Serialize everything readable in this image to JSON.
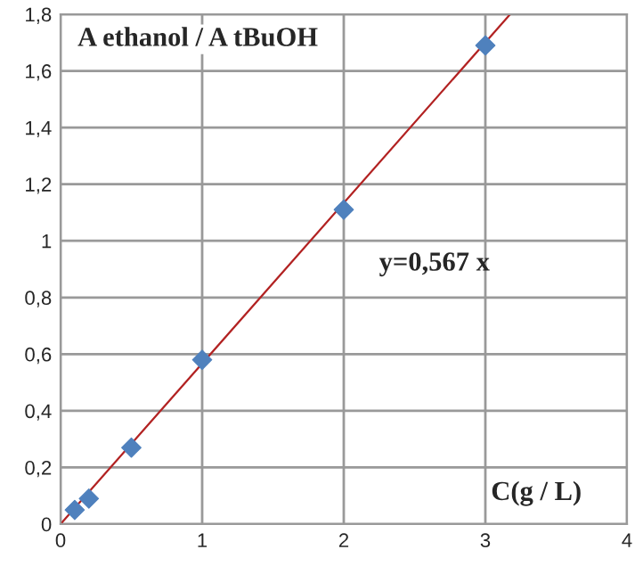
{
  "chart_data": {
    "type": "scatter",
    "xlabel": "C(g / L)",
    "ylabel": "A ethanol / A tBuOH",
    "annotations": [
      "y=0,567 x"
    ],
    "series": [
      {
        "color": "#4f81bd",
        "x": [
          0.1,
          0.2,
          0.5,
          1,
          2,
          3
        ],
        "values": [
          0.05,
          0.09,
          0.27,
          0.58,
          1.11,
          1.69
        ],
        "marker": "diamond"
      },
      {
        "type": "line",
        "color": "#b22222",
        "x": [
          0,
          3.175
        ],
        "values": [
          0,
          1.8
        ],
        "marker": "none"
      }
    ],
    "xlim": [
      0,
      4
    ],
    "ylim": [
      0,
      1.8
    ],
    "xticks": [
      0,
      1,
      2,
      3,
      4
    ],
    "yticks": [
      0,
      {
        "value": 0.2,
        "label": "0,2"
      },
      {
        "value": 0.4,
        "label": "0,4"
      },
      {
        "value": 0.6,
        "label": "0,6"
      },
      {
        "value": 0.8,
        "label": "0,8"
      },
      1,
      {
        "value": 1.2,
        "label": "1,2"
      },
      {
        "value": 1.4,
        "label": "1,4"
      },
      {
        "value": 1.6,
        "label": "1,6"
      },
      {
        "value": 1.8,
        "label": "1,8"
      }
    ],
    "grid": true,
    "legend": false
  }
}
